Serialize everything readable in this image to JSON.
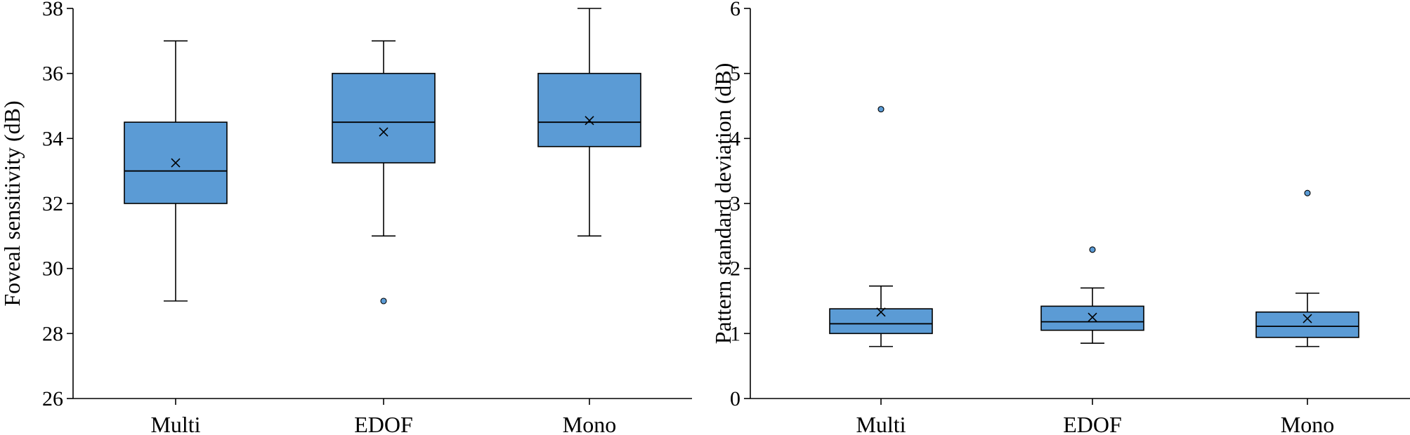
{
  "colors": {
    "box_fill": "#5b9bd5",
    "outlier_fill": "#5b9bd5",
    "axis": "#000000"
  },
  "chart_data": [
    {
      "type": "box",
      "ylabel": "Foveal sensitivity (dB)",
      "ylim": [
        26,
        38
      ],
      "yticks": [
        26,
        28,
        30,
        32,
        34,
        36,
        38
      ],
      "categories": [
        "Multi",
        "EDOF",
        "Mono"
      ],
      "boxes": [
        {
          "name": "Multi",
          "min": 29,
          "q1": 32,
          "median": 33,
          "q3": 34.5,
          "max": 37,
          "mean": 33.25,
          "outliers": []
        },
        {
          "name": "EDOF",
          "min": 31,
          "q1": 33.25,
          "median": 34.5,
          "q3": 36,
          "max": 37,
          "mean": 34.2,
          "outliers": [
            29
          ]
        },
        {
          "name": "Mono",
          "min": 31,
          "q1": 33.75,
          "median": 34.5,
          "q3": 36,
          "max": 38,
          "mean": 34.55,
          "outliers": []
        }
      ]
    },
    {
      "type": "box",
      "ylabel": "Pattern standard deviation (dB)",
      "ylim": [
        0,
        6
      ],
      "yticks": [
        0,
        1,
        2,
        3,
        4,
        5,
        6
      ],
      "categories": [
        "Multi",
        "EDOF",
        "Mono"
      ],
      "boxes": [
        {
          "name": "Multi",
          "min": 0.8,
          "q1": 1.0,
          "median": 1.15,
          "q3": 1.38,
          "max": 1.73,
          "mean": 1.33,
          "outliers": [
            4.45
          ]
        },
        {
          "name": "EDOF",
          "min": 0.85,
          "q1": 1.05,
          "median": 1.18,
          "q3": 1.42,
          "max": 1.7,
          "mean": 1.25,
          "outliers": [
            2.29
          ]
        },
        {
          "name": "Mono",
          "min": 0.8,
          "q1": 0.94,
          "median": 1.11,
          "q3": 1.33,
          "max": 1.62,
          "mean": 1.23,
          "outliers": [
            3.16
          ]
        }
      ]
    }
  ]
}
